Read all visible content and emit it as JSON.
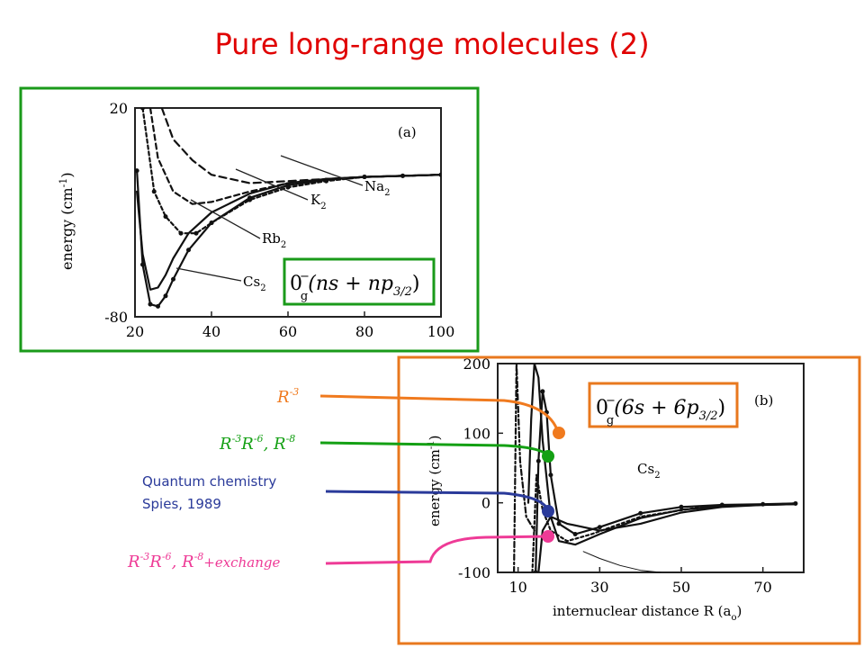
{
  "title": "Pure long-range molecules (2)",
  "colors": {
    "title": "#e00000",
    "frame_a": "#1a9a1a",
    "frame_b": "#e8781e",
    "leader_r3": "#f07a1e",
    "leader_r3r6": "#14a014",
    "leader_qc": "#2a3a9a",
    "leader_exch": "#ee3a96"
  },
  "chart_data": [
    {
      "id": "a",
      "type": "line",
      "panel_label": "(a)",
      "ylabel": "energy (cm",
      "ylabel_sup": "-1",
      "ylabel_close": ")",
      "xlim": [
        20,
        100
      ],
      "ylim": [
        -80,
        20
      ],
      "xticks": [
        "20",
        "40",
        "60",
        "80",
        "100"
      ],
      "yticks": [
        "20",
        "-80"
      ],
      "formula": {
        "lhs": "0",
        "sup": "−",
        "sub": "g",
        "body": "(ns + np",
        "body_sub": "3/2",
        "close": ")"
      },
      "series": [
        {
          "label": "Na",
          "label_sub": "2",
          "dash": "8,5",
          "x": [
            27,
            30,
            35,
            40,
            50,
            60,
            70,
            80,
            90,
            100
          ],
          "y": [
            20,
            5,
            -5,
            -12,
            -16,
            -15,
            -14,
            -13,
            -12.5,
            -12
          ]
        },
        {
          "label": "K",
          "label_sub": "2",
          "dash": "6,4",
          "x": [
            24,
            26,
            30,
            35,
            40,
            50,
            60,
            70,
            80,
            90,
            100
          ],
          "y": [
            20,
            -4,
            -20,
            -26,
            -25,
            -20,
            -16,
            -14,
            -13,
            -12.5,
            -12
          ]
        },
        {
          "label": "Rb",
          "label_sub": "2",
          "dash": "4,3",
          "markers": true,
          "x": [
            22,
            25,
            28,
            32,
            36,
            40,
            50,
            60,
            70,
            80,
            90,
            100
          ],
          "y": [
            20,
            -20,
            -32,
            -40,
            -40,
            -35,
            -24,
            -18,
            -15,
            -13,
            -12.5,
            -12
          ]
        },
        {
          "label": "Cs",
          "label_sub": "2",
          "dash": "",
          "x": [
            20.5,
            22,
            24,
            26,
            28,
            30,
            34,
            40,
            50,
            60,
            70,
            80,
            90,
            100
          ],
          "y": [
            -20,
            -50,
            -67,
            -66,
            -60,
            -52,
            -40,
            -30,
            -21,
            -16,
            -14,
            -13,
            -12.5,
            -12
          ]
        },
        {
          "label": "",
          "dash": "",
          "markers": true,
          "x": [
            20.5,
            22,
            24,
            26,
            28,
            30,
            34,
            40,
            50,
            60,
            70,
            80,
            90,
            100
          ],
          "y": [
            -10,
            -55,
            -74,
            -75,
            -70,
            -62,
            -48,
            -35,
            -23,
            -17,
            -14.5,
            -13,
            -12.5,
            -12
          ]
        }
      ]
    },
    {
      "id": "b",
      "type": "line",
      "panel_label": "(b)",
      "inner_label": "Cs",
      "inner_label_sub": "2",
      "ylabel": "energy (cm",
      "ylabel_sup": "-1",
      "ylabel_close": ")",
      "xlabel": "internuclear distance R (a",
      "xlabel_sub": "o",
      "xlabel_close": ")",
      "xlim": [
        5,
        80
      ],
      "ylim": [
        -100,
        200
      ],
      "xticks": [
        "10",
        "30",
        "50",
        "70"
      ],
      "yticks": [
        "200",
        "100",
        "0",
        "-100"
      ],
      "formula": {
        "lhs": "0",
        "sup": "−",
        "sub": "g",
        "body": "(6s + 6p",
        "body_sub": "3/2",
        "close": ")"
      },
      "series": [
        {
          "label": "",
          "dash": "",
          "x": [
            12.5,
            13.2,
            14,
            15,
            16,
            18,
            20,
            24,
            30,
            40,
            50,
            60,
            70,
            78
          ],
          "y": [
            0,
            120,
            200,
            180,
            90,
            -20,
            -55,
            -60,
            -45,
            -22,
            -10,
            -5,
            -3,
            -2
          ]
        },
        {
          "label": "",
          "dash": "",
          "markers": true,
          "x": [
            14.3,
            15,
            16,
            17,
            18,
            20,
            24,
            30,
            40,
            50,
            60,
            70,
            78
          ],
          "y": [
            -100,
            60,
            160,
            130,
            40,
            -30,
            -45,
            -35,
            -15,
            -6,
            -3,
            -2,
            -1
          ]
        },
        {
          "label": "",
          "dash": "",
          "x": [
            15,
            16,
            18,
            22,
            26,
            30,
            40,
            50,
            60,
            70,
            78
          ],
          "y": [
            -100,
            -40,
            -20,
            -30,
            -35,
            -40,
            -30,
            -14,
            -6,
            -3,
            -2
          ]
        },
        {
          "label": "",
          "dash": "3,3",
          "x": [
            13.5,
            14.5,
            16,
            18,
            22,
            28,
            40,
            55,
            78
          ],
          "y": [
            -100,
            40,
            -10,
            -40,
            -55,
            -45,
            -20,
            -6,
            -1
          ]
        },
        {
          "label": "",
          "dash": "6,3,2,3",
          "x": [
            9,
            9.6,
            10.5,
            12,
            14
          ],
          "y": [
            -100,
            200,
            60,
            -20,
            -40
          ]
        },
        {
          "label": "",
          "dash": "",
          "thin": true,
          "x": [
            26,
            30,
            35,
            40,
            45
          ],
          "y": [
            -70,
            -80,
            -90,
            -97,
            -100
          ]
        }
      ]
    }
  ],
  "annotations": [
    {
      "text": "R",
      "sup": "-3",
      "text2": "",
      "sup2": "",
      "tail": "",
      "color": "#f07a1e"
    },
    {
      "text": "R",
      "sup": "-3",
      "text2": "R",
      "sup2": "-6",
      "tail": ", R",
      "tail_sup": "-8",
      "extra": "",
      "color": "#14a014"
    },
    {
      "line1": "Quantum chemistry",
      "line2": "Spies, 1989",
      "color": "#2a3a9a"
    },
    {
      "text": "R",
      "sup": "-3",
      "text2": "R",
      "sup2": "-6",
      "tail": ", R",
      "tail_sup": "-8",
      "extra": "+exchange",
      "color": "#ee3a96"
    }
  ]
}
